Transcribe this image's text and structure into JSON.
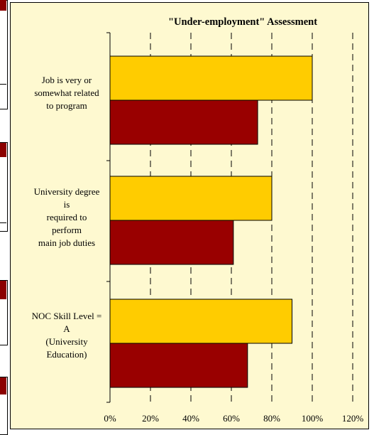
{
  "chart_data": {
    "type": "bar",
    "orientation": "horizontal",
    "title": "\"Under-employment\" Assessment",
    "categories": [
      "Job is very or somewhat related to program",
      "University degree is required to perform main job duties",
      "NOC Skill Level = A (University Education)"
    ],
    "category_label_lines": [
      [
        "Job is very or",
        "somewhat related",
        "to program"
      ],
      [
        "University degree",
        "is",
        "required to",
        "perform",
        "main job duties"
      ],
      [
        "NOC Skill Level =",
        "A",
        "(University",
        "Education)"
      ]
    ],
    "series": [
      {
        "color": "#ffcc00",
        "values": [
          100,
          80,
          90
        ]
      },
      {
        "color": "#990000",
        "values": [
          73,
          61,
          68
        ]
      }
    ],
    "x_ticks": [
      "0%",
      "20%",
      "40%",
      "60%",
      "80%",
      "100%",
      "120%"
    ],
    "xlim": [
      0,
      120
    ],
    "gridlines": "vertical dashed",
    "legend": "none"
  }
}
